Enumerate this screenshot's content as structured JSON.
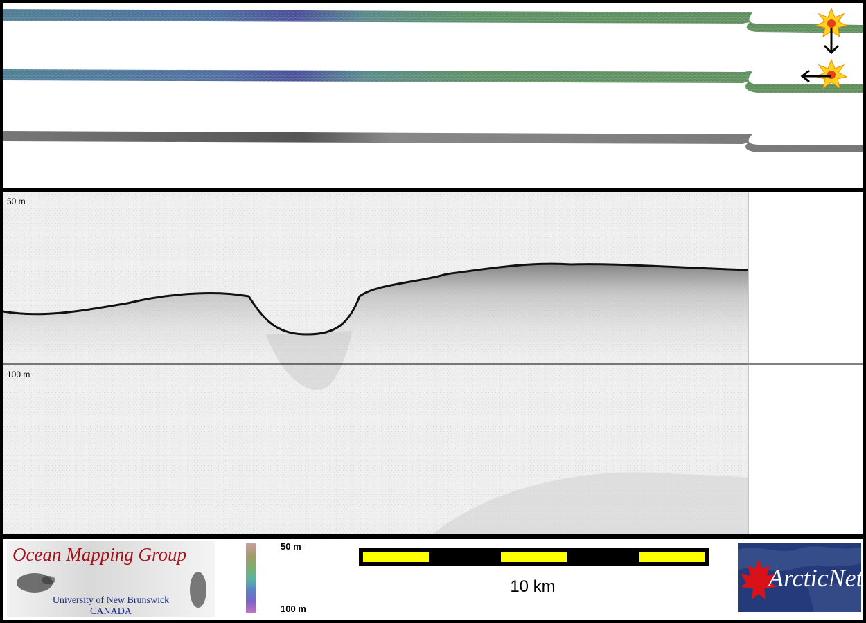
{
  "profile": {
    "depth_label_top": "50 m",
    "depth_label_mid": "100 m"
  },
  "colorbar": {
    "top_label": "50 m",
    "bottom_label": "100 m"
  },
  "scalebar": {
    "label": "10 km"
  },
  "logos": {
    "omg_title": "Ocean Mapping Group",
    "omg_line1": "University of New Brunswick",
    "omg_line2": "CANADA",
    "arcticnet_text": "ArcticNet"
  },
  "colors": {
    "swath_green": "#5f8f5a",
    "swath_blue": "#4f6fa0",
    "swath_purple": "#4a4f9a",
    "backscatter_gray": "#6e6e6e",
    "scale_yellow": "#ffff00",
    "omg_red": "#a8101a",
    "omg_blue": "#1a2a8a",
    "arctic_navy": "#243a7a"
  },
  "icons": [
    "sun-marker-icon",
    "arrow-down-icon",
    "arrow-left-icon",
    "maple-leaf-icon"
  ]
}
